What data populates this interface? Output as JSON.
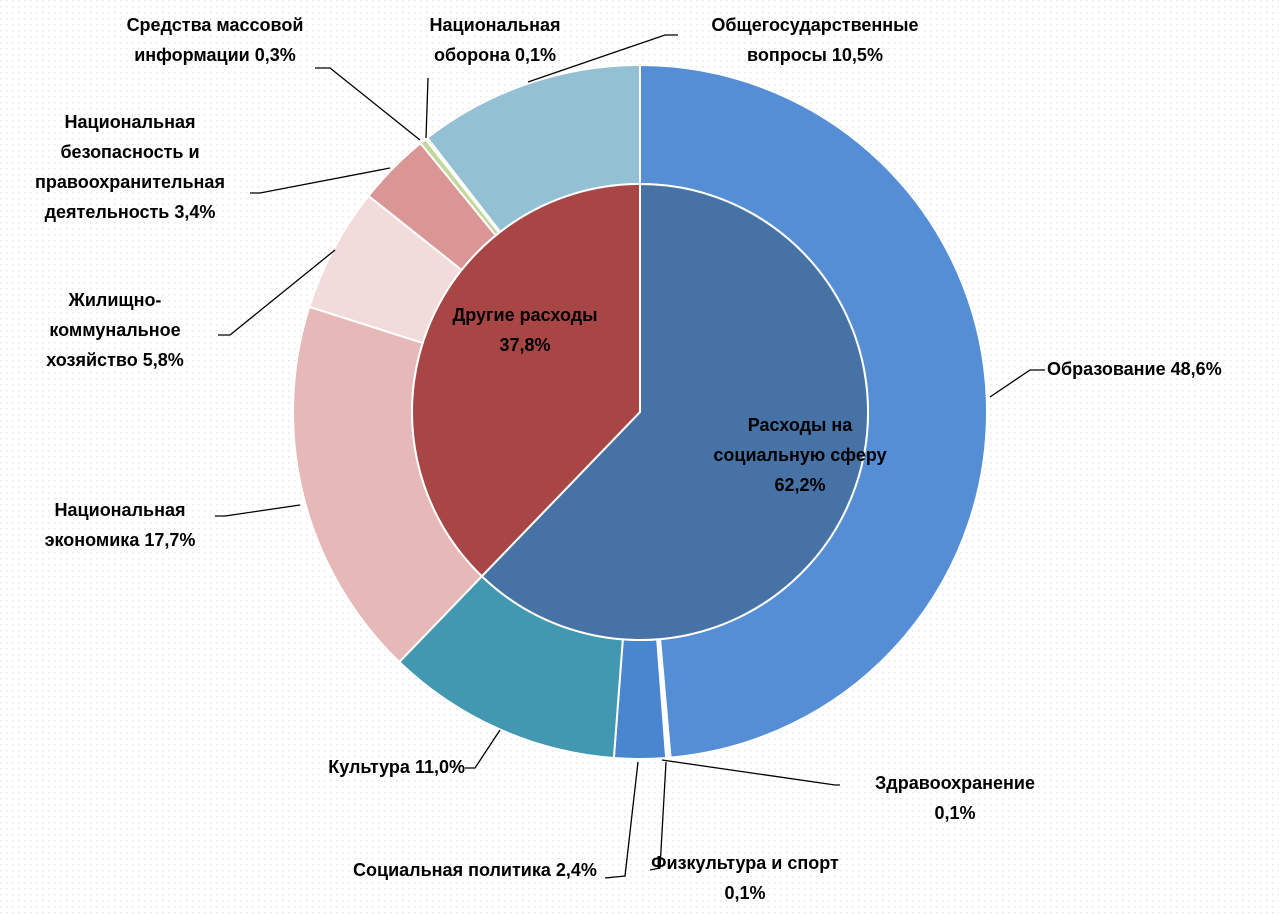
{
  "chart_data": [
    {
      "type": "pie",
      "categories": [
        "Расходы на социальную сферу",
        "Другие расходы"
      ],
      "values": [
        62.2,
        37.8
      ],
      "value_labels": [
        "62,2%",
        "37,8%"
      ],
      "colors": [
        "#4672a6",
        "#a84545"
      ]
    },
    {
      "type": "donut",
      "categories": [
        "Образование",
        "Здравоохранение",
        "Физкультура и спорт",
        "Социальная политика",
        "Культура",
        "Национальная экономика",
        "Жилищно-коммунальное хозяйство",
        "Национальная безопасность и правоохранительная деятельность",
        "Средства массовой информации",
        "Национальная оборона",
        "Общегосударственные вопросы"
      ],
      "values": [
        48.6,
        0.1,
        0.1,
        2.4,
        11.0,
        17.7,
        5.8,
        3.4,
        0.3,
        0.1,
        10.5
      ],
      "value_labels": [
        "48,6%",
        "0,1%",
        "0,1%",
        "2,4%",
        "11,0%",
        "17,7%",
        "5,8%",
        "3,4%",
        "0,3%",
        "0,1%",
        "10,5%"
      ],
      "colors": [
        "#558ed5",
        "#8eb4e3",
        "#f2f2f2",
        "#4a86d0",
        "#4298b0",
        "#e6b8b7",
        "#f2dcdb",
        "#d99694",
        "#c3d69b",
        "#77933c",
        "#93c1d3"
      ]
    }
  ]
}
